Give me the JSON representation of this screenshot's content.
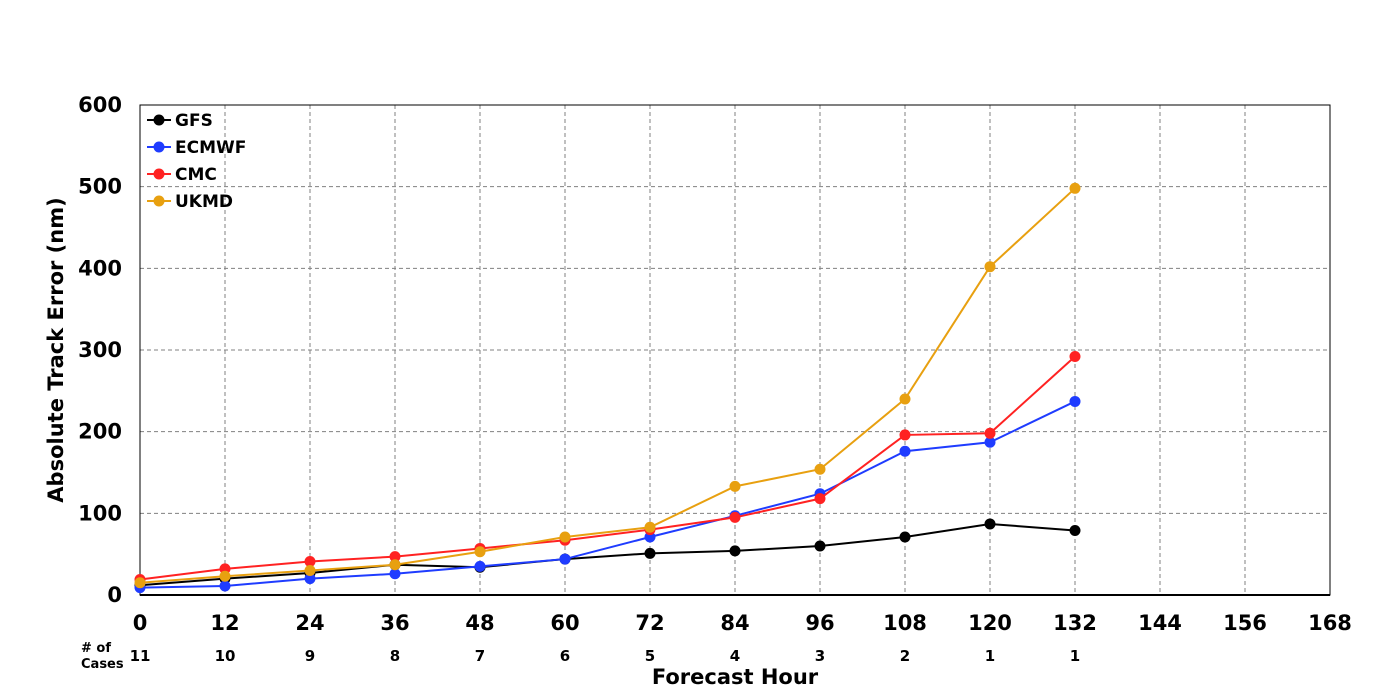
{
  "chart_data": {
    "type": "line",
    "xlabel": "Forecast Hour",
    "ylabel": "Absolute Track Error (nm)",
    "xlim": [
      0,
      168
    ],
    "ylim": [
      0,
      600
    ],
    "xticks": [
      0,
      12,
      24,
      36,
      48,
      60,
      72,
      84,
      96,
      108,
      120,
      132,
      144,
      156,
      168
    ],
    "yticks": [
      0,
      100,
      200,
      300,
      400,
      500,
      600
    ],
    "grid": true,
    "legend_position": "top-left",
    "cases_label": "# of Cases",
    "cases_label_lines": [
      "# of",
      "Cases"
    ],
    "cases": [
      {
        "x": 0,
        "n": "11"
      },
      {
        "x": 12,
        "n": "10"
      },
      {
        "x": 24,
        "n": "9"
      },
      {
        "x": 36,
        "n": "8"
      },
      {
        "x": 48,
        "n": "7"
      },
      {
        "x": 60,
        "n": "6"
      },
      {
        "x": 72,
        "n": "5"
      },
      {
        "x": 84,
        "n": "4"
      },
      {
        "x": 96,
        "n": "3"
      },
      {
        "x": 108,
        "n": "2"
      },
      {
        "x": 120,
        "n": "1"
      },
      {
        "x": 132,
        "n": "1"
      }
    ],
    "x": [
      0,
      12,
      24,
      36,
      48,
      60,
      72,
      84,
      96,
      108,
      120,
      132
    ],
    "series": [
      {
        "name": "GFS",
        "color": "#000000",
        "values": [
          12,
          20,
          27,
          37,
          34,
          44,
          51,
          54,
          60,
          71,
          87,
          79
        ]
      },
      {
        "name": "ECMWF",
        "color": "#1f3cff",
        "values": [
          9,
          11,
          20,
          26,
          35,
          44,
          71,
          97,
          124,
          176,
          187,
          237
        ]
      },
      {
        "name": "CMC",
        "color": "#ff2222",
        "values": [
          19,
          32,
          41,
          47,
          57,
          67,
          80,
          95,
          118,
          196,
          198,
          292
        ]
      },
      {
        "name": "UKMD",
        "color": "#e8a010",
        "values": [
          15,
          23,
          30,
          37,
          53,
          71,
          83,
          133,
          154,
          240,
          402,
          498
        ]
      }
    ]
  }
}
